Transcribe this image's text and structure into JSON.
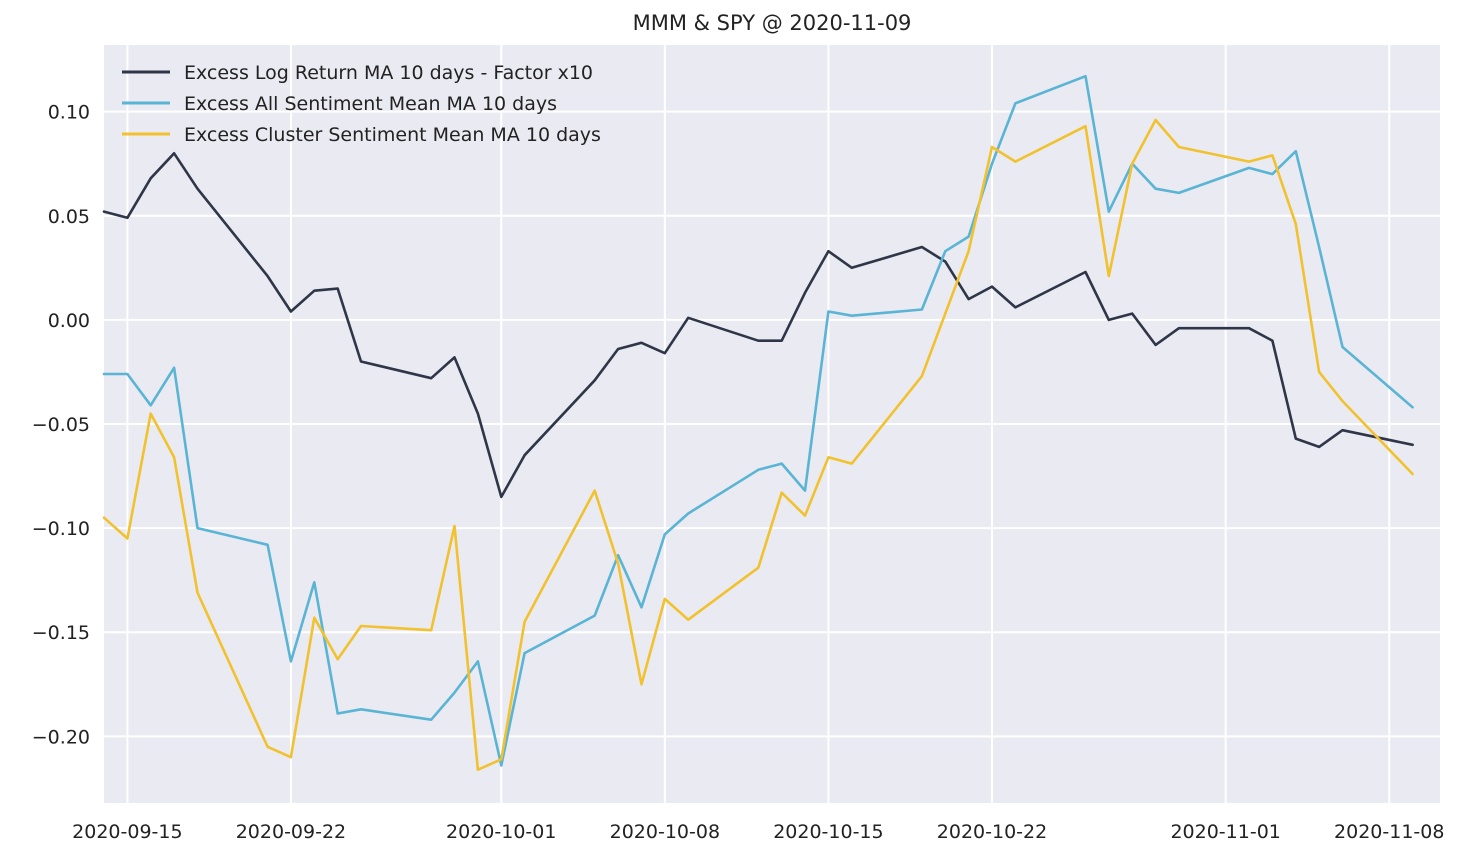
{
  "chart_data": {
    "type": "line",
    "title": "MMM & SPY @ 2020-11-09",
    "xlabel": "",
    "ylabel": "",
    "xlim": [
      "2020-09-14",
      "2020-11-09"
    ],
    "ylim": [
      -0.232,
      0.132
    ],
    "grid": true,
    "legend_position": "top-left",
    "x_ticks": [
      "2020-09-15",
      "2020-09-22",
      "2020-10-01",
      "2020-10-08",
      "2020-10-15",
      "2020-10-22",
      "2020-11-01",
      "2020-11-08"
    ],
    "y_ticks": [
      0.1,
      0.05,
      0.0,
      -0.05,
      -0.1,
      -0.15,
      -0.2
    ],
    "y_tick_labels": [
      "0.10",
      "0.05",
      "0.00",
      "−0.05",
      "−0.10",
      "−0.15",
      "−0.20"
    ],
    "x": [
      "2020-09-14",
      "2020-09-15",
      "2020-09-16",
      "2020-09-17",
      "2020-09-18",
      "2020-09-21",
      "2020-09-22",
      "2020-09-23",
      "2020-09-24",
      "2020-09-25",
      "2020-09-28",
      "2020-09-29",
      "2020-09-30",
      "2020-10-01",
      "2020-10-02",
      "2020-10-05",
      "2020-10-06",
      "2020-10-07",
      "2020-10-08",
      "2020-10-09",
      "2020-10-12",
      "2020-10-13",
      "2020-10-14",
      "2020-10-15",
      "2020-10-16",
      "2020-10-19",
      "2020-10-20",
      "2020-10-21",
      "2020-10-22",
      "2020-10-23",
      "2020-10-26",
      "2020-10-27",
      "2020-10-28",
      "2020-10-29",
      "2020-10-30",
      "2020-11-02",
      "2020-11-03",
      "2020-11-04",
      "2020-11-05",
      "2020-11-06",
      "2020-11-09"
    ],
    "series": [
      {
        "name": "Excess Log Return MA 10 days - Factor x10",
        "color": "#2e3648",
        "values": [
          0.052,
          0.049,
          0.068,
          0.08,
          0.063,
          0.021,
          0.004,
          0.014,
          0.015,
          -0.02,
          -0.028,
          -0.018,
          -0.045,
          -0.085,
          -0.065,
          -0.029,
          -0.014,
          -0.011,
          -0.016,
          0.001,
          -0.01,
          -0.01,
          0.013,
          0.033,
          0.025,
          0.035,
          0.028,
          0.01,
          0.016,
          0.006,
          0.023,
          0.0,
          0.003,
          -0.012,
          -0.004,
          -0.004,
          -0.01,
          -0.057,
          -0.061,
          -0.053,
          -0.06
        ]
      },
      {
        "name": "Excess All Sentiment Mean MA 10 days",
        "color": "#5ab4d4",
        "values": [
          -0.026,
          -0.026,
          -0.041,
          -0.023,
          -0.1,
          -0.108,
          -0.164,
          -0.126,
          -0.189,
          -0.187,
          -0.192,
          -0.179,
          -0.164,
          -0.214,
          -0.16,
          -0.142,
          -0.113,
          -0.138,
          -0.103,
          -0.093,
          -0.072,
          -0.069,
          -0.082,
          0.004,
          0.002,
          0.005,
          0.033,
          0.04,
          0.075,
          0.104,
          0.117,
          0.052,
          0.075,
          0.063,
          0.061,
          0.073,
          0.07,
          0.081,
          0.035,
          -0.013,
          -0.042
        ]
      },
      {
        "name": "Excess Cluster Sentiment Mean MA 10 days",
        "color": "#f2c12e",
        "values": [
          -0.095,
          -0.105,
          -0.045,
          -0.066,
          -0.131,
          -0.205,
          -0.21,
          -0.143,
          -0.163,
          -0.147,
          -0.149,
          -0.099,
          -0.216,
          -0.211,
          -0.145,
          -0.082,
          -0.117,
          -0.175,
          -0.134,
          -0.144,
          -0.119,
          -0.083,
          -0.094,
          -0.066,
          -0.069,
          -0.027,
          0.003,
          0.033,
          0.083,
          0.076,
          0.093,
          0.021,
          0.075,
          0.096,
          0.083,
          0.076,
          0.079,
          0.046,
          -0.025,
          -0.039,
          -0.074
        ]
      }
    ]
  }
}
